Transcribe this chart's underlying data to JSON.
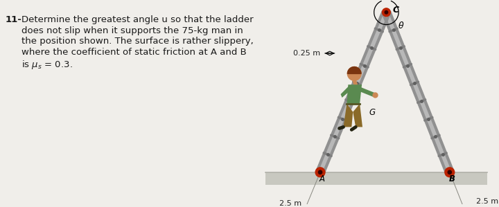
{
  "bg_color": "#f0eeea",
  "text_color": "#1a1a1a",
  "problem_number": "11-",
  "problem_text_lines": [
    "Determine the greatest angle u so that the ladder",
    "does not slip when it supports the 75-kg man in",
    "the position shown. The surface is rather slippery,",
    "where the coefficient of static friction at A and B",
    "is μs = 0.3."
  ],
  "pin_color_red": "#bb2200",
  "label_C": "C",
  "label_A": "A",
  "label_B": "B",
  "label_G": "G",
  "label_theta": "θ",
  "dim_025": "0.25 m",
  "dim_25_left": "2.5 m",
  "dim_25_right": "2.5 m",
  "man_shirt_color": "#5a8a50",
  "man_pants_color": "#8a6a28",
  "man_skin_color": "#cc8855",
  "man_hair_color": "#7a3510"
}
